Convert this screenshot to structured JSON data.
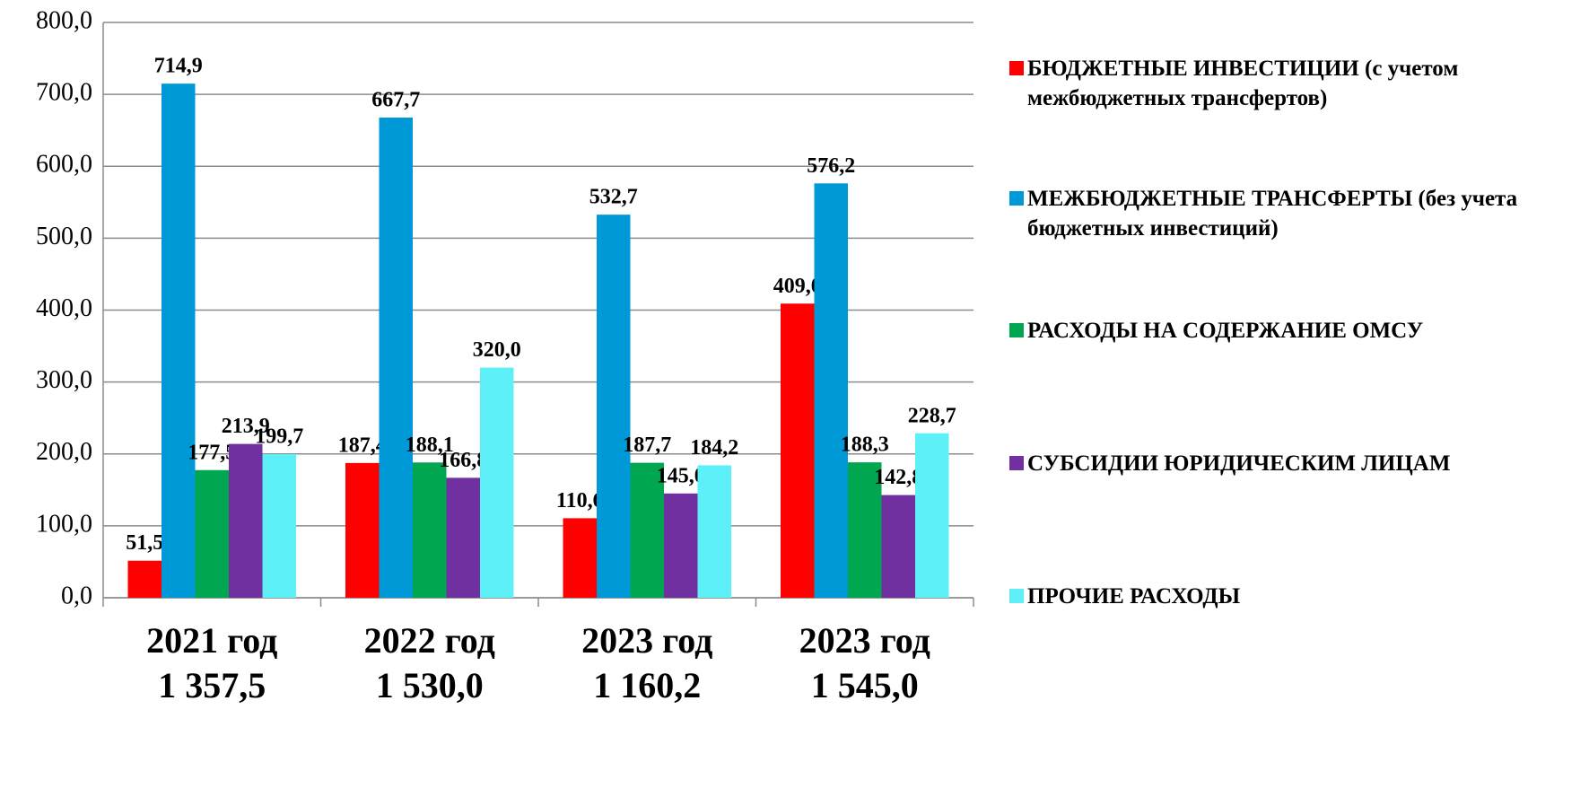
{
  "chart_data": {
    "type": "bar",
    "categories": [
      "2021 год",
      "2022 год",
      "2023 год",
      "2023 год"
    ],
    "category_sublabels": [
      "1 357,5",
      "1 530,0",
      "1 160,2",
      "1 545,0"
    ],
    "series": [
      {
        "name": "БЮДЖЕТНЫЕ ИНВЕСТИЦИИ (с учетом межбюджетных трансфертов)",
        "color": "#ff0000",
        "values": [
          51.5,
          187.4,
          110.6,
          409.0
        ],
        "value_labels": [
          "51,5",
          "187,4",
          "110,6",
          "409,0"
        ]
      },
      {
        "name": "МЕЖБЮДЖЕТНЫЕ ТРАНСФЕРТЫ (без учета бюджетных инвестиций)",
        "color": "#0099d8",
        "values": [
          714.9,
          667.7,
          532.7,
          576.2
        ],
        "value_labels": [
          "714,9",
          "667,7",
          "532,7",
          "576,2"
        ]
      },
      {
        "name": "РАСХОДЫ НА СОДЕРЖАНИЕ ОМСУ",
        "color": "#00a650",
        "values": [
          177.5,
          188.1,
          187.7,
          188.3
        ],
        "value_labels": [
          "177,5",
          "188,1",
          "187,7",
          "188,3"
        ]
      },
      {
        "name": "СУБСИДИИ ЮРИДИЧЕСКИМ ЛИЦАМ",
        "color": "#7030a0",
        "values": [
          213.9,
          166.8,
          145.0,
          142.8
        ],
        "value_labels": [
          "213,9",
          "166,8",
          "145,0",
          "142,8"
        ]
      },
      {
        "name": "ПРОЧИЕ РАСХОДЫ",
        "color": "#5ef0f8",
        "values": [
          199.7,
          320.0,
          184.2,
          228.7
        ],
        "value_labels": [
          "199,7",
          "320,0",
          "184,2",
          "228,7"
        ]
      }
    ],
    "ylim": [
      0,
      800
    ],
    "yticks": [
      {
        "value": 0,
        "label": "0,0"
      },
      {
        "value": 100,
        "label": "100,0"
      },
      {
        "value": 200,
        "label": "200,0"
      },
      {
        "value": 300,
        "label": "300,0"
      },
      {
        "value": 400,
        "label": "400,0"
      },
      {
        "value": 500,
        "label": "500,0"
      },
      {
        "value": 600,
        "label": "600,0"
      },
      {
        "value": 700,
        "label": "700,0"
      },
      {
        "value": 800,
        "label": "800,0"
      }
    ],
    "grid": true,
    "legend": "right"
  }
}
